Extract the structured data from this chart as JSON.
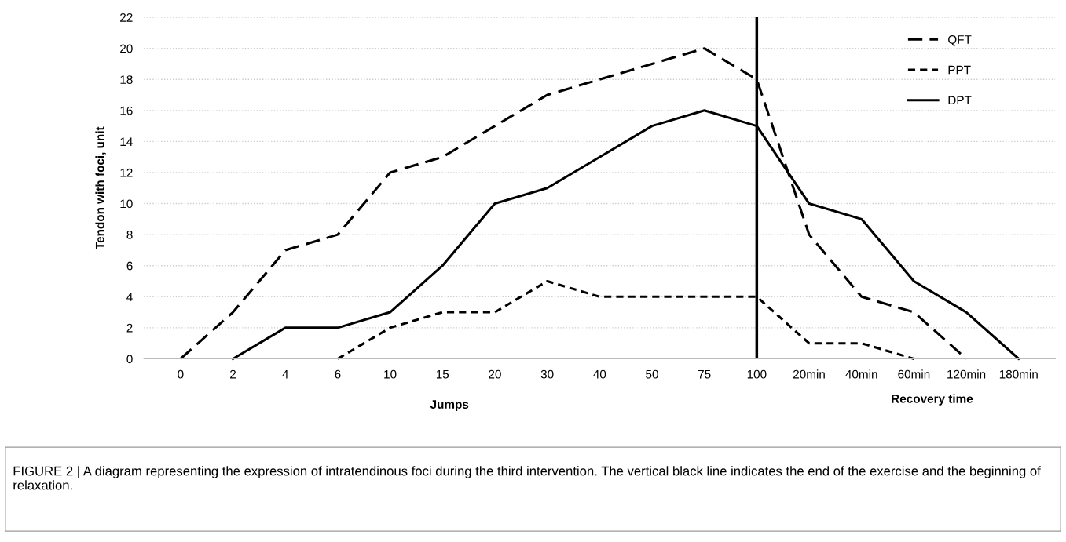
{
  "chart_data": {
    "type": "line",
    "ylabel": "Tendon with foci, unit",
    "xlabel": "Jumps",
    "categories": [
      "0",
      "2",
      "4",
      "6",
      "10",
      "15",
      "20",
      "30",
      "40",
      "50",
      "75",
      "100",
      "20min",
      "40min",
      "60min",
      "120min",
      "180min"
    ],
    "series": [
      {
        "name": "QFT",
        "color": "#000000",
        "line_style": "dashed",
        "values": [
          0,
          3,
          7,
          8,
          12,
          13,
          15,
          17,
          18,
          19,
          20,
          18,
          8,
          4,
          3,
          0,
          null
        ]
      },
      {
        "name": "PPT",
        "color": "#000000",
        "line_style": "dotted",
        "values": [
          null,
          null,
          null,
          0,
          2,
          3,
          3,
          5,
          4,
          4,
          4,
          4,
          1,
          1,
          0,
          null,
          null
        ]
      },
      {
        "name": "DPT",
        "color": "#000000",
        "line_style": "solid",
        "values": [
          null,
          0,
          2,
          2,
          3,
          6,
          10,
          11,
          13,
          15,
          16,
          15,
          10,
          9,
          5,
          3,
          0
        ]
      }
    ],
    "ylim": [
      0,
      22
    ],
    "yticks": [
      0,
      2,
      4,
      6,
      8,
      10,
      12,
      14,
      16,
      18,
      20,
      22
    ],
    "grid": "y",
    "legend": "top right",
    "marker": "none",
    "ref_lines": [
      {
        "axis": "x",
        "value": "100",
        "color": "#000000"
      }
    ],
    "annotations": [
      "Recovery time",
      "FIGURE 2 | A diagram representing the expression of intratendinous foci during the third intervention. The vertical black line indicates the end of the exercise and the beginning of relaxation."
    ]
  }
}
